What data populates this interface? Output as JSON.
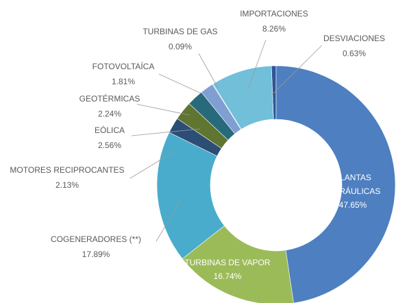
{
  "chart_data": {
    "type": "donut",
    "categories": [
      "PLANTAS HIDRÁULICAS",
      "TURBINAS DE VAPOR",
      "COGENERADORES (**)",
      "MOTORES RECIPROCANTES",
      "EÓLICA",
      "GEOTÉRMICAS",
      "FOTOVOLTAÍCA",
      "TURBINAS DE GAS",
      "IMPORTACIONES",
      "DESVIACIONES"
    ],
    "values": [
      47.65,
      16.74,
      17.89,
      2.13,
      2.56,
      2.24,
      1.81,
      0.09,
      8.26,
      0.63
    ],
    "value_labels": [
      "47.65%",
      "16.74%",
      "17.89%",
      "2.13%",
      "2.56%",
      "2.24%",
      "1.81%",
      "0.09%",
      "8.26%",
      "0.63%"
    ],
    "colors": [
      "#4e7fc0",
      "#9bbb59",
      "#4aaccc",
      "#2c4d75",
      "#5f7530",
      "#276a7c",
      "#7f9fd3",
      "#a5a5a5",
      "#71bfd9",
      "#2e5597"
    ]
  }
}
